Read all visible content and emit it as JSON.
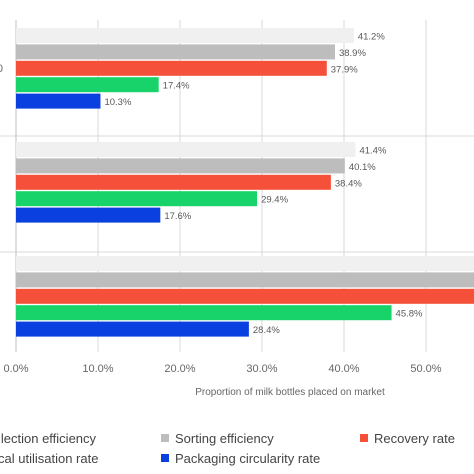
{
  "chart_data": {
    "type": "bar",
    "orientation": "horizontal",
    "categories": [
      "0",
      "",
      ""
    ],
    "series": [
      {
        "name": "llection efficiency",
        "color": "#f0f0f0",
        "values": [
          41.2,
          41.4,
          56.5
        ],
        "labels": [
          "41.2%",
          "41.4%",
          ""
        ]
      },
      {
        "name": "Sorting efficiency",
        "color": "#bdbdbd",
        "values": [
          38.9,
          40.1,
          56.5
        ],
        "labels": [
          "38.9%",
          "40.1%",
          ""
        ]
      },
      {
        "name": "Recovery rate",
        "color": "#f4503a",
        "values": [
          37.9,
          38.4,
          56.5
        ],
        "labels": [
          "37.9%",
          "38.4%",
          ""
        ]
      },
      {
        "name": "cal utilisation rate",
        "color": "#17d36a",
        "values": [
          17.4,
          29.4,
          45.8
        ],
        "labels": [
          "17.4%",
          "29.4%",
          "45.8%"
        ]
      },
      {
        "name": "Packaging circularity rate",
        "color": "#0a3fe0",
        "values": [
          10.3,
          17.6,
          28.4
        ],
        "labels": [
          "10.3%",
          "17.6%",
          "28.4%"
        ]
      }
    ],
    "xlim": [
      0,
      56
    ],
    "xticks": [
      "0.0%",
      "10.0%",
      "20.0%",
      "30.0%",
      "40.0%",
      "50.0%"
    ],
    "xlabel": "Proportion of milk bottles placed on market",
    "grid": true,
    "legend": "bottom"
  }
}
